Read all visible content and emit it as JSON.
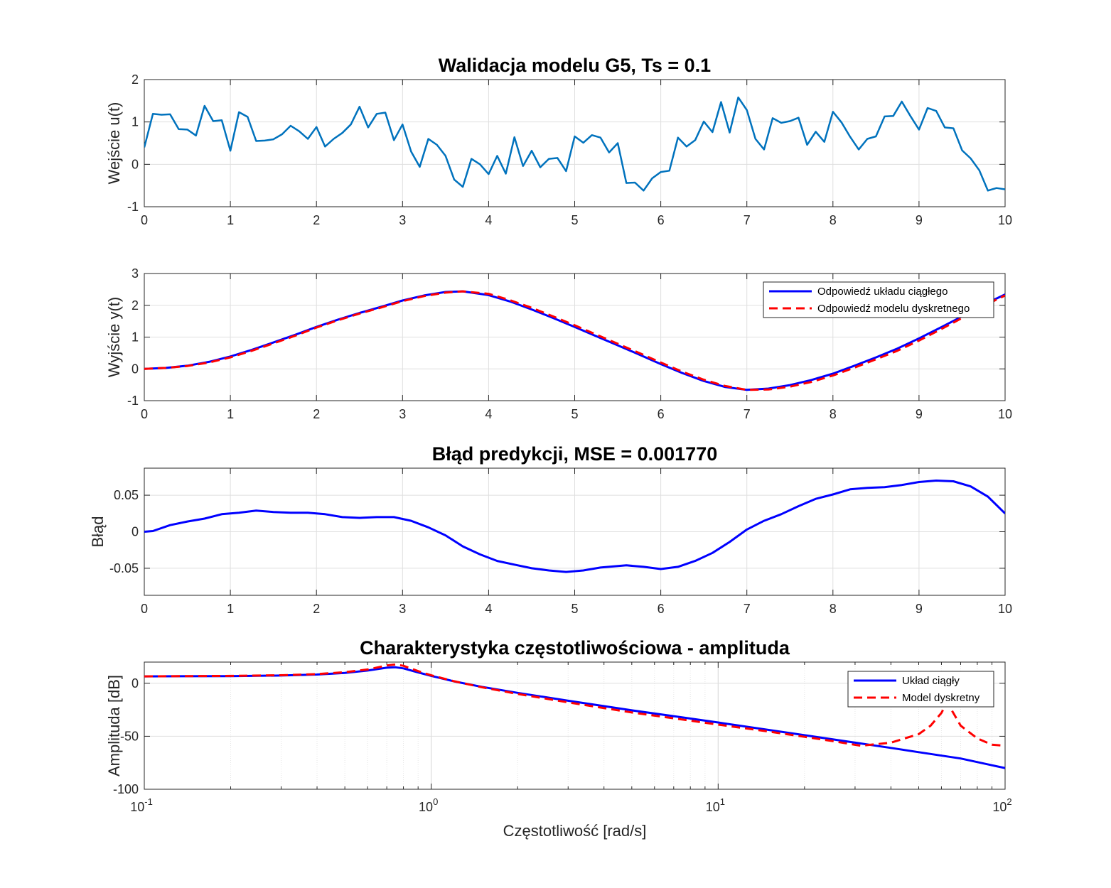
{
  "chart_data": [
    {
      "type": "line",
      "title": "Walidacja modelu G5, Ts = 0.1",
      "xlabel": "",
      "ylabel": "Wejście u(t)",
      "xlim": [
        0,
        10
      ],
      "ylim": [
        -1,
        2
      ],
      "xticks": [
        "0",
        "1",
        "2",
        "3",
        "4",
        "5",
        "6",
        "7",
        "8",
        "9",
        "10"
      ],
      "yticks": [
        "-1",
        "0",
        "1",
        "2"
      ],
      "grid": true,
      "series": [
        {
          "color": "#0072BD",
          "style": "solid",
          "x": [
            0,
            0.1,
            0.2,
            0.3,
            0.4,
            0.5,
            0.6,
            0.7,
            0.8,
            0.9,
            1.0,
            1.1,
            1.2,
            1.3,
            1.4,
            1.5,
            1.6,
            1.7,
            1.8,
            1.9,
            2.0,
            2.1,
            2.2,
            2.3,
            2.4,
            2.5,
            2.6,
            2.7,
            2.8,
            2.9,
            3.0,
            3.1,
            3.2,
            3.3,
            3.4,
            3.5,
            3.6,
            3.7,
            3.8,
            3.9,
            4.0,
            4.1,
            4.2,
            4.3,
            4.4,
            4.5,
            4.6,
            4.7,
            4.8,
            4.9,
            5.0,
            5.1,
            5.2,
            5.3,
            5.4,
            5.5,
            5.6,
            5.7,
            5.8,
            5.9,
            6.0,
            6.1,
            6.2,
            6.3,
            6.4,
            6.5,
            6.6,
            6.7,
            6.8,
            6.9,
            7.0,
            7.1,
            7.2,
            7.3,
            7.4,
            7.5,
            7.6,
            7.7,
            7.8,
            7.9,
            8.0,
            8.1,
            8.2,
            8.3,
            8.4,
            8.5,
            8.6,
            8.7,
            8.8,
            8.9,
            9.0,
            9.1,
            9.2,
            9.3,
            9.4,
            9.5,
            9.6,
            9.7,
            9.8,
            9.9,
            10.0
          ],
          "y": [
            0.4,
            1.19,
            1.17,
            1.18,
            0.83,
            0.82,
            0.68,
            1.38,
            1.02,
            1.04,
            0.32,
            1.23,
            1.12,
            0.55,
            0.56,
            0.59,
            0.71,
            0.91,
            0.78,
            0.6,
            0.88,
            0.42,
            0.6,
            0.74,
            0.94,
            1.36,
            0.87,
            1.19,
            1.22,
            0.57,
            0.94,
            0.3,
            -0.06,
            0.6,
            0.46,
            0.2,
            -0.36,
            -0.53,
            0.13,
            0.0,
            -0.23,
            0.2,
            -0.22,
            0.64,
            -0.04,
            0.32,
            -0.07,
            0.13,
            0.15,
            -0.16,
            0.66,
            0.51,
            0.69,
            0.63,
            0.28,
            0.5,
            -0.44,
            -0.43,
            -0.62,
            -0.33,
            -0.18,
            -0.15,
            0.63,
            0.42,
            0.57,
            1.01,
            0.76,
            1.47,
            0.75,
            1.58,
            1.28,
            0.6,
            0.35,
            1.09,
            0.98,
            1.02,
            1.1,
            0.46,
            0.77,
            0.53,
            1.24,
            0.99,
            0.65,
            0.35,
            0.6,
            0.66,
            1.13,
            1.14,
            1.48,
            1.14,
            0.82,
            1.33,
            1.26,
            0.87,
            0.85,
            0.33,
            0.14,
            -0.14,
            -0.62,
            -0.56,
            -0.59
          ]
        }
      ]
    },
    {
      "type": "line",
      "title": "",
      "xlabel": "",
      "ylabel": "Wyjście y(t)",
      "xlim": [
        0,
        10
      ],
      "ylim": [
        -1,
        3
      ],
      "xticks": [
        "0",
        "1",
        "2",
        "3",
        "4",
        "5",
        "6",
        "7",
        "8",
        "9",
        "10"
      ],
      "yticks": [
        "-1",
        "0",
        "1",
        "2",
        "3"
      ],
      "grid": true,
      "legend": "top-right",
      "series": [
        {
          "name": "Odpowiedź układu ciągłego",
          "color": "#0000FF",
          "style": "solid",
          "x": [
            0,
            0.25,
            0.5,
            0.75,
            1.0,
            1.25,
            1.5,
            1.75,
            2.0,
            2.25,
            2.5,
            2.75,
            3.0,
            3.25,
            3.5,
            3.7,
            4.0,
            4.25,
            4.5,
            4.75,
            5.0,
            5.25,
            5.5,
            5.75,
            6.0,
            6.25,
            6.5,
            6.75,
            7.0,
            7.25,
            7.5,
            7.75,
            8.0,
            8.25,
            8.5,
            8.75,
            9.0,
            9.25,
            9.5,
            9.75,
            10.0
          ],
          "y": [
            0,
            0.03,
            0.1,
            0.22,
            0.39,
            0.6,
            0.83,
            1.07,
            1.32,
            1.55,
            1.76,
            1.95,
            2.15,
            2.31,
            2.42,
            2.44,
            2.32,
            2.12,
            1.87,
            1.6,
            1.32,
            1.03,
            0.74,
            0.45,
            0.15,
            -0.13,
            -0.38,
            -0.57,
            -0.66,
            -0.62,
            -0.51,
            -0.35,
            -0.15,
            0.1,
            0.36,
            0.64,
            0.96,
            1.3,
            1.65,
            2.02,
            2.34
          ]
        },
        {
          "name": "Odpowiedź modelu dyskretnego",
          "color": "#FF0000",
          "style": "dashed",
          "x": [
            0,
            0.25,
            0.5,
            0.75,
            1.0,
            1.25,
            1.5,
            1.75,
            2.0,
            2.25,
            2.5,
            2.75,
            3.0,
            3.25,
            3.5,
            3.7,
            4.0,
            4.25,
            4.5,
            4.75,
            5.0,
            5.25,
            5.5,
            5.75,
            6.0,
            6.25,
            6.5,
            6.75,
            7.0,
            7.25,
            7.5,
            7.75,
            8.0,
            8.25,
            8.5,
            8.75,
            9.0,
            9.25,
            9.5,
            9.75,
            10.0
          ],
          "y": [
            0,
            0.03,
            0.09,
            0.2,
            0.36,
            0.57,
            0.8,
            1.04,
            1.3,
            1.53,
            1.74,
            1.93,
            2.13,
            2.29,
            2.4,
            2.44,
            2.36,
            2.16,
            1.92,
            1.65,
            1.37,
            1.08,
            0.79,
            0.5,
            0.2,
            -0.09,
            -0.34,
            -0.54,
            -0.66,
            -0.65,
            -0.56,
            -0.41,
            -0.21,
            0.04,
            0.3,
            0.57,
            0.89,
            1.24,
            1.6,
            1.98,
            2.31
          ]
        }
      ]
    },
    {
      "type": "line",
      "title": "Błąd predykcji, MSE = 0.001770",
      "xlabel": "",
      "ylabel": "Błąd",
      "xlim": [
        0,
        10
      ],
      "ylim": [
        -0.087,
        0.087
      ],
      "xticks": [
        "0",
        "1",
        "2",
        "3",
        "4",
        "5",
        "6",
        "7",
        "8",
        "9",
        "10"
      ],
      "yticks": [
        "-0.05",
        "0",
        "0.05"
      ],
      "yticks_values": [
        -0.05,
        0,
        0.05
      ],
      "grid": true,
      "series": [
        {
          "color": "#0000FF",
          "style": "solid",
          "x": [
            0,
            0.1,
            0.3,
            0.5,
            0.7,
            0.9,
            1.1,
            1.3,
            1.5,
            1.7,
            1.9,
            2.1,
            2.3,
            2.5,
            2.7,
            2.9,
            3.1,
            3.3,
            3.5,
            3.7,
            3.9,
            4.1,
            4.3,
            4.5,
            4.7,
            4.9,
            5.1,
            5.3,
            5.6,
            5.8,
            6.0,
            6.2,
            6.4,
            6.6,
            6.8,
            7.0,
            7.2,
            7.4,
            7.6,
            7.8,
            8.0,
            8.2,
            8.4,
            8.6,
            8.8,
            9.0,
            9.2,
            9.4,
            9.6,
            9.8,
            10.0
          ],
          "y": [
            0,
            0.001,
            0.009,
            0.014,
            0.018,
            0.024,
            0.026,
            0.029,
            0.027,
            0.026,
            0.026,
            0.024,
            0.02,
            0.019,
            0.02,
            0.02,
            0.015,
            0.006,
            -0.005,
            -0.02,
            -0.031,
            -0.04,
            -0.045,
            -0.05,
            -0.053,
            -0.055,
            -0.053,
            -0.049,
            -0.046,
            -0.048,
            -0.051,
            -0.048,
            -0.04,
            -0.029,
            -0.014,
            0.003,
            0.015,
            0.024,
            0.035,
            0.045,
            0.051,
            0.058,
            0.06,
            0.061,
            0.064,
            0.068,
            0.07,
            0.069,
            0.062,
            0.048,
            0.025
          ]
        }
      ]
    },
    {
      "type": "line",
      "title": "Charakterystyka częstotliwościowa - amplituda",
      "xlabel": "Częstotliwość [rad/s]",
      "ylabel": "Amplituda [dB]",
      "xscale": "log",
      "xlim": [
        0.1,
        100
      ],
      "ylim": [
        -100,
        20
      ],
      "xticks_base": "10",
      "xticks_exp": [
        "-1",
        "0",
        "1",
        "2"
      ],
      "yticks": [
        "-100",
        "-50",
        "0"
      ],
      "grid": true,
      "legend": "top-right",
      "series": [
        {
          "name": "Układ ciągły",
          "color": "#0000FF",
          "style": "solid",
          "x": [
            0.1,
            0.2,
            0.3,
            0.4,
            0.5,
            0.6,
            0.7,
            0.75,
            0.8,
            0.9,
            1.0,
            1.2,
            1.5,
            2,
            3,
            5,
            7,
            10,
            15,
            20,
            30,
            40,
            50,
            70,
            100
          ],
          "y": [
            6.5,
            6.8,
            7.3,
            8.3,
            9.8,
            12.0,
            14.7,
            15.1,
            14.1,
            10.3,
            7.0,
            1.8,
            -3.3,
            -9.0,
            -16.5,
            -25.5,
            -31.0,
            -37.0,
            -44.0,
            -49.0,
            -56.0,
            -61.0,
            -65.0,
            -71.0,
            -80.0
          ]
        },
        {
          "name": "Model dyskretny",
          "color": "#FF0000",
          "style": "dashed",
          "x": [
            0.1,
            0.2,
            0.3,
            0.4,
            0.5,
            0.6,
            0.7,
            0.75,
            0.8,
            0.9,
            1.0,
            1.2,
            1.5,
            2,
            3,
            5,
            7,
            10,
            15,
            20,
            25,
            31.4,
            40,
            50,
            55,
            60,
            62.8,
            66,
            70,
            80,
            90,
            100
          ],
          "y": [
            6.5,
            7.0,
            7.6,
            8.7,
            10.5,
            13.0,
            16.8,
            17.8,
            16.5,
            11.5,
            7.5,
            2.0,
            -3.7,
            -10.0,
            -18.0,
            -27.5,
            -33.0,
            -39.0,
            -45.5,
            -50.5,
            -54.5,
            -59.0,
            -56.0,
            -48.0,
            -40.0,
            -28.0,
            -18.0,
            -28.0,
            -40.0,
            -52.0,
            -58.0,
            -59.0
          ]
        }
      ]
    }
  ]
}
